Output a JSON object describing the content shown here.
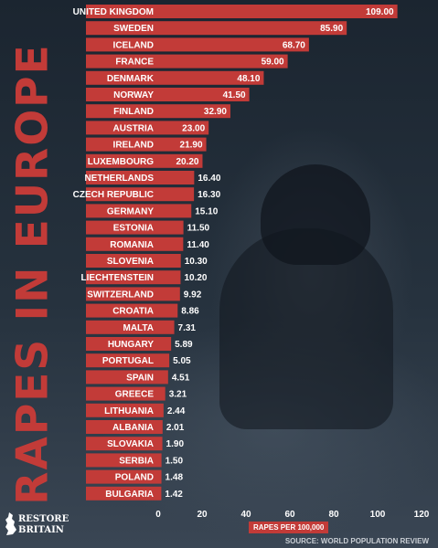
{
  "chart_data": {
    "type": "bar",
    "orientation": "horizontal",
    "title": "RAPES IN EUROPE",
    "xlabel": "RAPES PER 100,000",
    "xlim": [
      0,
      120
    ],
    "xticks": [
      "0",
      "20",
      "40",
      "60",
      "80",
      "100",
      "120"
    ],
    "categories": [
      "UNITED KINGDOM",
      "SWEDEN",
      "ICELAND",
      "FRANCE",
      "DENMARK",
      "NORWAY",
      "FINLAND",
      "AUSTRIA",
      "IRELAND",
      "LUXEMBOURG",
      "NETHERLANDS",
      "CZECH REPUBLIC",
      "GERMANY",
      "ESTONIA",
      "ROMANIA",
      "SLOVENIA",
      "LIECHTENSTEIN",
      "SWITZERLAND",
      "CROATIA",
      "MALTA",
      "HUNGARY",
      "PORTUGAL",
      "SPAIN",
      "GREECE",
      "LITHUANIA",
      "ALBANIA",
      "SLOVAKIA",
      "SERBIA",
      "POLAND",
      "BULGARIA"
    ],
    "values": [
      109.0,
      85.9,
      68.7,
      59.0,
      48.1,
      41.5,
      32.9,
      23.0,
      21.9,
      20.2,
      16.4,
      16.3,
      15.1,
      11.5,
      11.4,
      10.3,
      10.2,
      9.92,
      8.86,
      7.31,
      5.89,
      5.05,
      4.51,
      3.21,
      2.44,
      2.01,
      1.9,
      1.5,
      1.48,
      1.42
    ],
    "value_labels": [
      "109.00",
      "85.90",
      "68.70",
      "59.00",
      "48.10",
      "41.50",
      "32.90",
      "23.00",
      "21.90",
      "20.20",
      "16.40",
      "16.30",
      "15.10",
      "11.50",
      "11.40",
      "10.30",
      "10.20",
      "9.92",
      "8.86",
      "7.31",
      "5.89",
      "5.05",
      "4.51",
      "3.21",
      "2.44",
      "2.01",
      "1.90",
      "1.50",
      "1.48",
      "1.42"
    ],
    "bar_color": "#c23b38",
    "grid": false
  },
  "source": "SOURCE: WORLD POPULATION REVIEW",
  "logo": {
    "line1": "RESTORE",
    "line2": "BRITAIN"
  }
}
